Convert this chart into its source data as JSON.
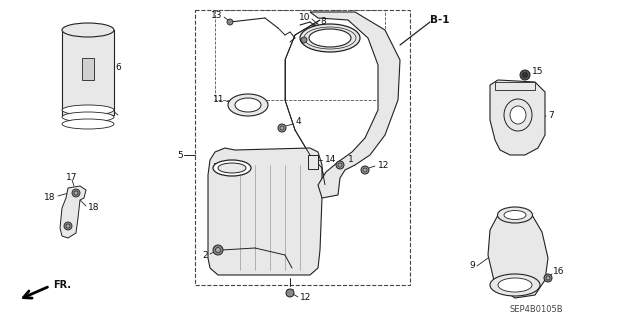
{
  "background_color": "#ffffff",
  "diagram_code": "SEP4B0105B",
  "label_B1": "B-1",
  "label_FR": "FR.",
  "fig_width": 6.4,
  "fig_height": 3.19,
  "dpi": 100,
  "lc": "#222222",
  "lw": 0.7
}
